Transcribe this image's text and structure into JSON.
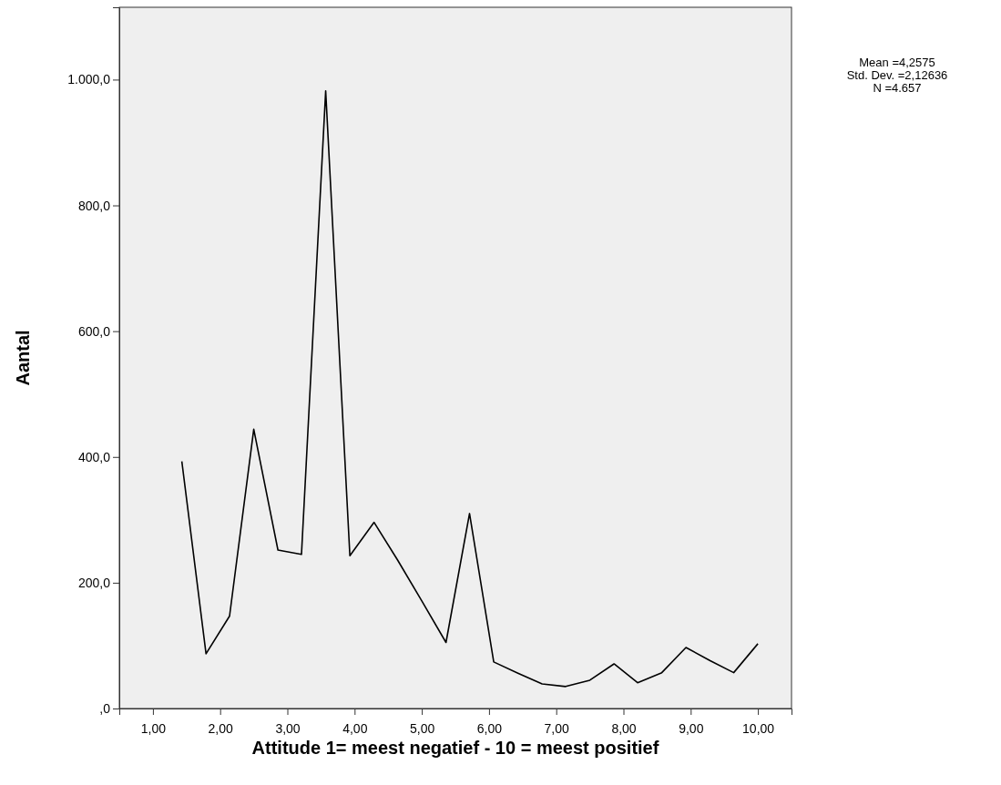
{
  "chart_data": {
    "type": "line",
    "x": [
      1.43,
      1.79,
      2.14,
      2.5,
      2.86,
      3.21,
      3.57,
      3.93,
      4.29,
      4.64,
      5.0,
      5.36,
      5.71,
      6.07,
      6.43,
      6.79,
      7.14,
      7.5,
      7.86,
      8.21,
      8.57,
      8.93,
      9.29,
      9.64,
      10.0
    ],
    "series": [
      {
        "color": "#000000",
        "values": [
          393,
          87,
          147,
          444,
          252,
          245,
          982,
          243,
          296,
          236,
          171,
          105,
          310,
          74,
          56,
          39,
          35,
          45,
          71,
          41,
          57,
          97,
          76,
          57,
          103
        ]
      }
    ],
    "xlabel": "Attitude 1= meest negatief  - 10 = meest positief",
    "ylabel": "Aantal",
    "xlim": [
      0.5,
      10.5
    ],
    "ylim": [
      0,
      1115
    ],
    "xticks": [
      {
        "value": 1,
        "label": "1,00"
      },
      {
        "value": 2,
        "label": "2,00"
      },
      {
        "value": 3,
        "label": "3,00"
      },
      {
        "value": 4,
        "label": "4,00"
      },
      {
        "value": 5,
        "label": "5,00"
      },
      {
        "value": 6,
        "label": "6,00"
      },
      {
        "value": 7,
        "label": "7,00"
      },
      {
        "value": 8,
        "label": "8,00"
      },
      {
        "value": 9,
        "label": "9,00"
      },
      {
        "value": 10,
        "label": "10,00"
      }
    ],
    "yticks": [
      {
        "value": 0,
        "label": ",0"
      },
      {
        "value": 200,
        "label": "200,0"
      },
      {
        "value": 400,
        "label": "400,0"
      },
      {
        "value": 600,
        "label": "600,0"
      },
      {
        "value": 800,
        "label": "800,0"
      },
      {
        "value": 1000,
        "label": "1.000,0"
      }
    ],
    "annotations": [
      "Mean =4,2575",
      "Std. Dev. =2,12636",
      "N =4.657"
    ],
    "marker": "none",
    "line_style": "solid"
  }
}
